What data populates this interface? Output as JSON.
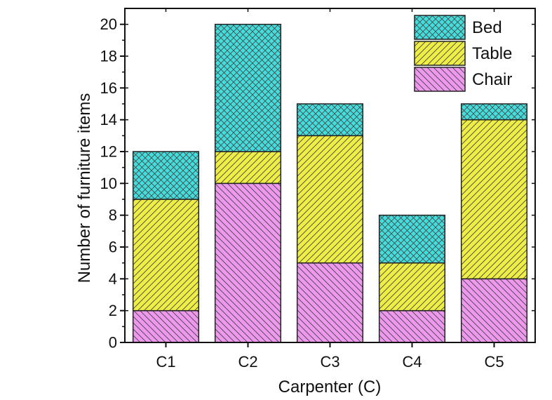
{
  "chart_data": {
    "type": "bar",
    "stacked": true,
    "categories": [
      "C1",
      "C2",
      "C3",
      "C4",
      "C5"
    ],
    "series": [
      {
        "name": "Chair",
        "values": [
          2,
          10,
          5,
          2,
          4
        ],
        "color": "#ee99ee",
        "pattern": "diagonal-down"
      },
      {
        "name": "Table",
        "values": [
          7,
          2,
          8,
          3,
          10
        ],
        "color": "#eeee44",
        "pattern": "diagonal-up"
      },
      {
        "name": "Bed",
        "values": [
          3,
          8,
          2,
          3,
          1
        ],
        "color": "#44dddd",
        "pattern": "crosshatch"
      }
    ],
    "xlabel": "Carpenter (C)",
    "ylabel": "Number of furniture items",
    "ylim": [
      0,
      21
    ],
    "yticks": [
      0,
      2,
      4,
      6,
      8,
      10,
      12,
      14,
      16,
      18,
      20
    ],
    "grid": false,
    "legend": {
      "position": "top-right",
      "order": [
        "Bed",
        "Table",
        "Chair"
      ]
    }
  }
}
